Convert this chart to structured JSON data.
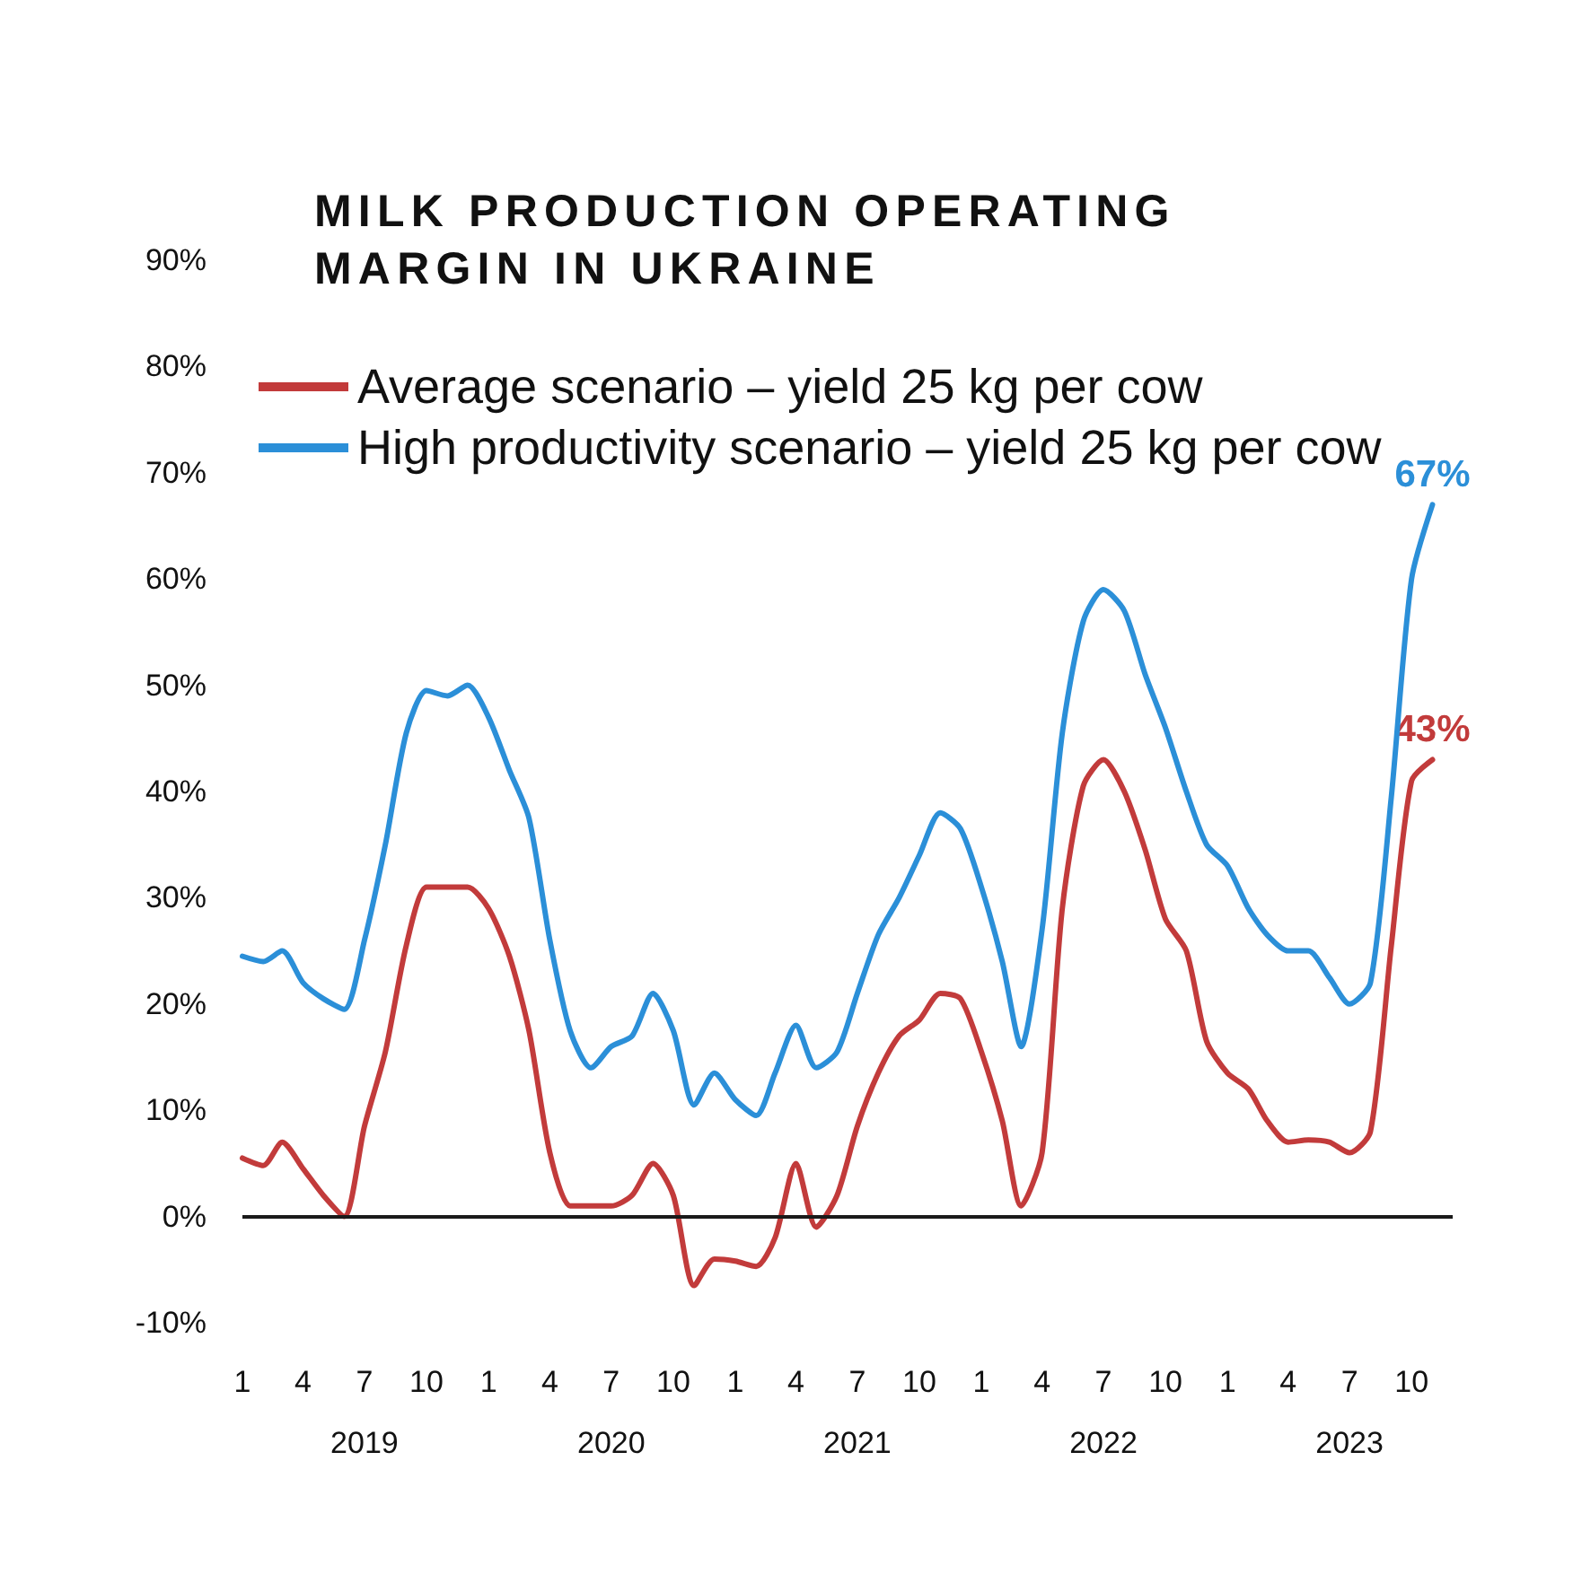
{
  "chart_data": {
    "type": "line",
    "title": "MILK PRODUCTION OPERATING MARGIN IN UKRAINE",
    "x": [
      "2019-01",
      "2019-02",
      "2019-03",
      "2019-04",
      "2019-05",
      "2019-06",
      "2019-07",
      "2019-08",
      "2019-09",
      "2019-10",
      "2019-11",
      "2019-12",
      "2020-01",
      "2020-02",
      "2020-03",
      "2020-04",
      "2020-05",
      "2020-06",
      "2020-07",
      "2020-08",
      "2020-09",
      "2020-10",
      "2020-11",
      "2020-12",
      "2021-01",
      "2021-02",
      "2021-03",
      "2021-04",
      "2021-05",
      "2021-06",
      "2021-07",
      "2021-08",
      "2021-09",
      "2021-10",
      "2021-11",
      "2021-12",
      "2022-01",
      "2022-02",
      "2022-03",
      "2022-04",
      "2022-05",
      "2022-06",
      "2022-07",
      "2022-08",
      "2022-09",
      "2022-10",
      "2022-11",
      "2022-12",
      "2023-01",
      "2023-02",
      "2023-03",
      "2023-04",
      "2023-05",
      "2023-06",
      "2023-07",
      "2023-08",
      "2023-09",
      "2023-10",
      "2023-11"
    ],
    "series": [
      {
        "name": "Average scenario – yield 25 kg per cow",
        "color": "#c23b3b",
        "values": [
          5.5,
          4.8,
          7,
          4.5,
          2,
          0,
          8.5,
          15.5,
          25.5,
          31,
          31,
          31,
          29,
          24.5,
          17.5,
          6,
          1,
          1,
          1,
          2,
          5,
          2,
          -6.5,
          -4,
          -4.2,
          -4.7,
          -2,
          5,
          -1,
          2,
          8.5,
          13.5,
          17,
          18.5,
          21,
          20.5,
          15.5,
          9,
          1,
          6,
          29,
          40.5,
          43,
          40,
          34.5,
          28,
          25,
          16.5,
          13.5,
          12,
          9,
          7,
          7.2,
          7,
          6,
          8,
          25.5,
          41,
          43
        ],
        "value_labels": [
          null,
          null,
          null,
          null,
          null,
          null,
          null,
          null,
          null,
          null,
          null,
          null,
          null,
          null,
          null,
          null,
          null,
          null,
          null,
          null,
          null,
          null,
          null,
          null,
          null,
          null,
          null,
          null,
          null,
          null,
          null,
          null,
          null,
          null,
          null,
          null,
          null,
          null,
          null,
          null,
          null,
          null,
          null,
          null,
          null,
          null,
          null,
          null,
          null,
          null,
          null,
          null,
          null,
          null,
          null,
          null,
          null,
          null,
          "43%"
        ]
      },
      {
        "name": "High productivity scenario – yield 25 kg per cow",
        "color": "#2b8fd8",
        "values": [
          24.5,
          24,
          25,
          22,
          20.5,
          19.5,
          26,
          35,
          45.5,
          49.5,
          49,
          50,
          47,
          42,
          37.5,
          26,
          17.5,
          14,
          16,
          17,
          21,
          17.5,
          10.5,
          13.5,
          11,
          9.5,
          13.5,
          18,
          14,
          15.5,
          21,
          26.5,
          30,
          34,
          38,
          36.5,
          31,
          24,
          16,
          27,
          45.5,
          56,
          59,
          57,
          51,
          46,
          40,
          35,
          33,
          29,
          26.5,
          25,
          25,
          22.5,
          20,
          22,
          39.5,
          60,
          67
        ],
        "value_labels": [
          null,
          null,
          null,
          null,
          null,
          null,
          null,
          null,
          null,
          null,
          null,
          null,
          null,
          null,
          null,
          null,
          null,
          null,
          null,
          null,
          null,
          null,
          null,
          null,
          null,
          null,
          null,
          null,
          null,
          null,
          null,
          null,
          null,
          null,
          null,
          null,
          null,
          null,
          null,
          null,
          null,
          null,
          null,
          null,
          null,
          null,
          null,
          null,
          null,
          null,
          null,
          null,
          null,
          null,
          null,
          null,
          null,
          null,
          "67%"
        ]
      }
    ],
    "xlim": [
      "2019-01",
      "2023-12"
    ],
    "xticks": [
      {
        "value": "2019-01",
        "label": "1"
      },
      {
        "value": "2019-04",
        "label": "4"
      },
      {
        "value": "2019-07",
        "label": "7\n2019"
      },
      {
        "value": "2019-10",
        "label": "10"
      },
      {
        "value": "2020-01",
        "label": "1"
      },
      {
        "value": "2020-04",
        "label": "4"
      },
      {
        "value": "2020-07",
        "label": "7\n2020"
      },
      {
        "value": "2020-10",
        "label": "10"
      },
      {
        "value": "2021-01",
        "label": "1"
      },
      {
        "value": "2021-04",
        "label": "4"
      },
      {
        "value": "2021-07",
        "label": "7\n2021"
      },
      {
        "value": "2021-10",
        "label": "10"
      },
      {
        "value": "2022-01",
        "label": "1"
      },
      {
        "value": "2022-04",
        "label": "4"
      },
      {
        "value": "2022-07",
        "label": "7\n2022"
      },
      {
        "value": "2022-10",
        "label": "10"
      },
      {
        "value": "2023-01",
        "label": "1"
      },
      {
        "value": "2023-04",
        "label": "4"
      },
      {
        "value": "2023-07",
        "label": "7\n2023"
      },
      {
        "value": "2023-10",
        "label": "10"
      }
    ],
    "ylim": [
      -10,
      90
    ],
    "yticks": [
      {
        "value": -10,
        "label": "-10%"
      },
      {
        "value": 0,
        "label": "0%"
      },
      {
        "value": 10,
        "label": "10%"
      },
      {
        "value": 20,
        "label": "20%"
      },
      {
        "value": 30,
        "label": "30%"
      },
      {
        "value": 40,
        "label": "40%"
      },
      {
        "value": 50,
        "label": "50%"
      },
      {
        "value": 60,
        "label": "60%"
      },
      {
        "value": 70,
        "label": "70%"
      },
      {
        "value": 80,
        "label": "80%"
      },
      {
        "value": 90,
        "label": "90%"
      }
    ],
    "ref_lines": [
      {
        "axis": "y",
        "value": 0,
        "color": "#1a1a1a"
      }
    ],
    "legend": "top left",
    "grid": false,
    "marker": "none",
    "line_style": "solid"
  }
}
